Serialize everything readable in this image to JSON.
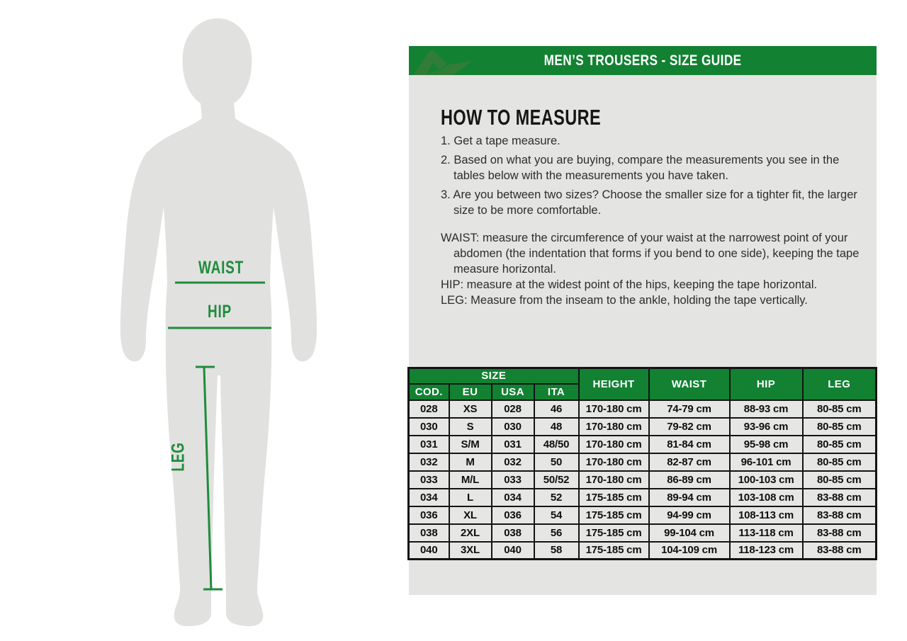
{
  "colors": {
    "header_green": "#128132",
    "annotation_green": "#1E8C3B",
    "logo_green": "#3E7B39",
    "panel_gray": "#E4E4E2",
    "cell_gray": "#E6E6E4",
    "silhouette_gray": "#E1E1E0",
    "border_black": "#141414"
  },
  "header": {
    "title": "MEN’S TROUSERS - SIZE GUIDE",
    "logo": "acerbis-logo"
  },
  "figure": {
    "labels": {
      "waist": "WAIST",
      "hip": "HIP",
      "leg": "LEG"
    }
  },
  "how_to_measure": {
    "title": "HOW TO MEASURE",
    "steps": [
      "1. Get a tape measure.",
      "2. Based on what you are buying, compare the measurements you see in the tables below with the measurements you have taken.",
      "3. Are you between two sizes? Choose the smaller size for a tighter fit, the larger size to be more comfortable."
    ],
    "notes": [
      "WAIST: measure the circumference of your waist at the narrowest point of your abdomen (the indentation that forms if you bend to one side), keeping the tape measure horizontal.",
      "HIP: measure at the widest point of the hips, keeping the tape horizontal.",
      "LEG: Measure from the inseam to the ankle, holding the tape vertically."
    ]
  },
  "size_table": {
    "group_header": "SIZE",
    "sub_headers": [
      "COD.",
      "EU",
      "USA",
      "ITA"
    ],
    "span_headers": [
      "HEIGHT",
      "WAIST",
      "HIP",
      "LEG"
    ],
    "rows": [
      [
        "028",
        "XS",
        "028",
        "46",
        "170-180 cm",
        "74-79 cm",
        "88-93 cm",
        "80-85 cm"
      ],
      [
        "030",
        "S",
        "030",
        "48",
        "170-180 cm",
        "79-82 cm",
        "93-96 cm",
        "80-85 cm"
      ],
      [
        "031",
        "S/M",
        "031",
        "48/50",
        "170-180 cm",
        "81-84 cm",
        "95-98 cm",
        "80-85 cm"
      ],
      [
        "032",
        "M",
        "032",
        "50",
        "170-180 cm",
        "82-87 cm",
        "96-101 cm",
        "80-85 cm"
      ],
      [
        "033",
        "M/L",
        "033",
        "50/52",
        "170-180 cm",
        "86-89 cm",
        "100-103 cm",
        "80-85 cm"
      ],
      [
        "034",
        "L",
        "034",
        "52",
        "175-185 cm",
        "89-94 cm",
        "103-108 cm",
        "83-88 cm"
      ],
      [
        "036",
        "XL",
        "036",
        "54",
        "175-185 cm",
        "94-99 cm",
        "108-113 cm",
        "83-88 cm"
      ],
      [
        "038",
        "2XL",
        "038",
        "56",
        "175-185 cm",
        "99-104 cm",
        "113-118 cm",
        "83-88 cm"
      ],
      [
        "040",
        "3XL",
        "040",
        "58",
        "175-185 cm",
        "104-109 cm",
        "118-123 cm",
        "83-88 cm"
      ]
    ]
  }
}
